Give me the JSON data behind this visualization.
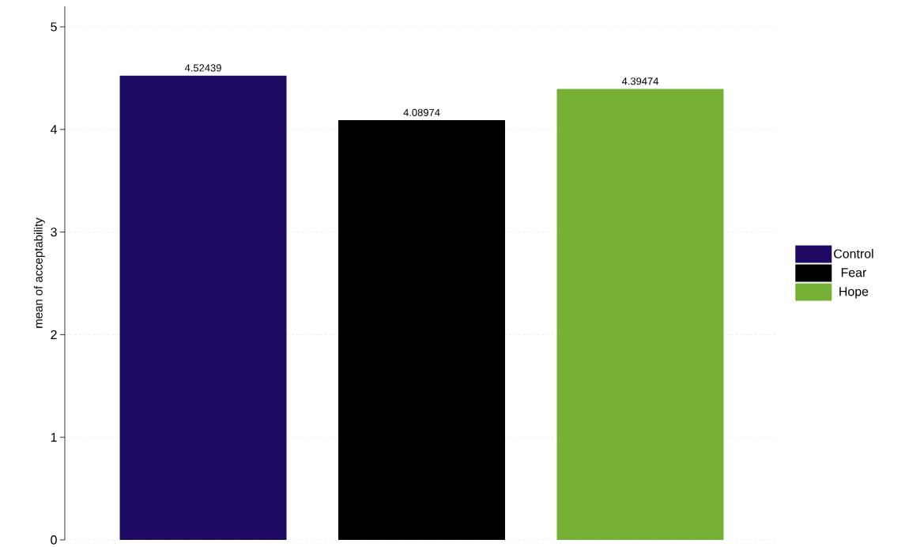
{
  "chart_data": {
    "type": "bar",
    "ylabel": "mean of acceptability",
    "categories": [
      null,
      null,
      null
    ],
    "series": [
      {
        "name": "Control",
        "color": "#1f0a63",
        "values": [
          4.52439,
          null,
          null
        ]
      },
      {
        "name": "Fear",
        "color": "#000000",
        "values": [
          null,
          4.08974,
          null
        ]
      },
      {
        "name": "Hope",
        "color": "#76b136",
        "values": [
          null,
          null,
          4.39474
        ]
      }
    ],
    "ylim": [
      0,
      5.2
    ],
    "yticks": [
      0,
      1,
      2,
      3,
      4,
      5
    ],
    "grid": "y",
    "legend": "right",
    "data_labels": true
  }
}
